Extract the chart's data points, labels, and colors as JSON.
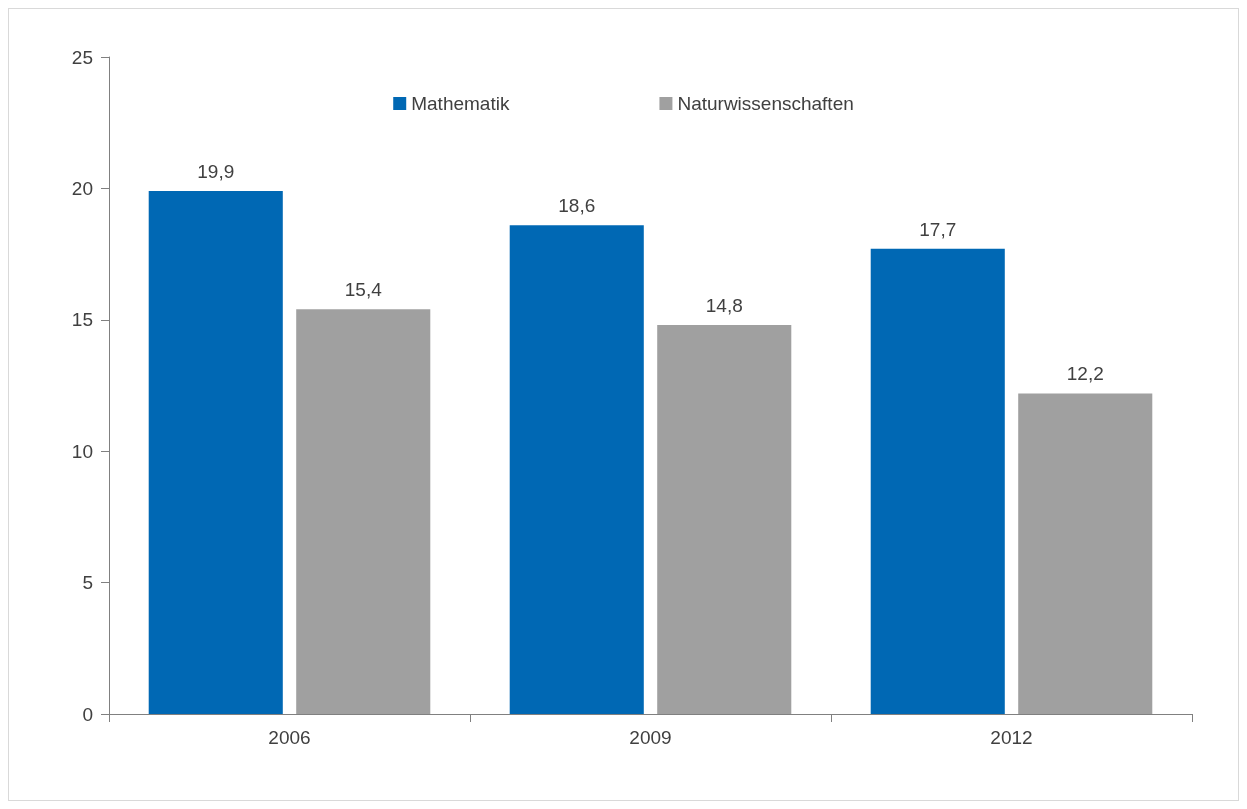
{
  "chart_data": {
    "type": "bar",
    "categories": [
      "2006",
      "2009",
      "2012"
    ],
    "series": [
      {
        "name": "Mathematik",
        "color": "#0068b4",
        "values": [
          19.9,
          18.6,
          17.7
        ],
        "value_labels": [
          "19,9",
          "18,6",
          "17,7"
        ]
      },
      {
        "name": "Naturwissenschaften",
        "color": "#a0a0a0",
        "values": [
          15.4,
          14.8,
          12.2
        ],
        "value_labels": [
          "15,4",
          "14,8",
          "12,2"
        ]
      }
    ],
    "ylim": [
      0,
      25
    ],
    "yticks": [
      0,
      5,
      10,
      15,
      20,
      25
    ],
    "grid": false,
    "legend": "top"
  }
}
